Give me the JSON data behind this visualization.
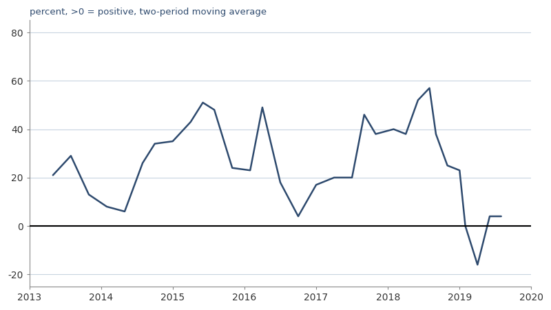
{
  "title": "percent, >0 = positive, two-period moving average",
  "title_color": "#2e4a6e",
  "line_color": "#2e4a6e",
  "background_color": "#ffffff",
  "zero_line_color": "#000000",
  "grid_color": "#c8d4e0",
  "xlim": [
    2013.0,
    2020.0
  ],
  "ylim": [
    -25,
    85
  ],
  "yticks": [
    -20,
    0,
    20,
    40,
    60,
    80
  ],
  "xticks": [
    2013,
    2014,
    2015,
    2016,
    2017,
    2018,
    2019,
    2020
  ],
  "x": [
    2013.33,
    2013.58,
    2013.83,
    2014.08,
    2014.33,
    2014.58,
    2014.75,
    2015.0,
    2015.25,
    2015.42,
    2015.58,
    2015.83,
    2016.08,
    2016.25,
    2016.5,
    2016.75,
    2017.0,
    2017.25,
    2017.5,
    2017.67,
    2017.83,
    2018.08,
    2018.25,
    2018.42,
    2018.58,
    2018.67,
    2018.83,
    2019.0,
    2019.08,
    2019.25,
    2019.42,
    2019.58
  ],
  "y": [
    21,
    29,
    13,
    8,
    6,
    26,
    34,
    35,
    43,
    51,
    48,
    24,
    23,
    49,
    18,
    4,
    17,
    20,
    20,
    46,
    38,
    40,
    38,
    52,
    57,
    38,
    25,
    23,
    0,
    -16,
    4,
    4
  ]
}
